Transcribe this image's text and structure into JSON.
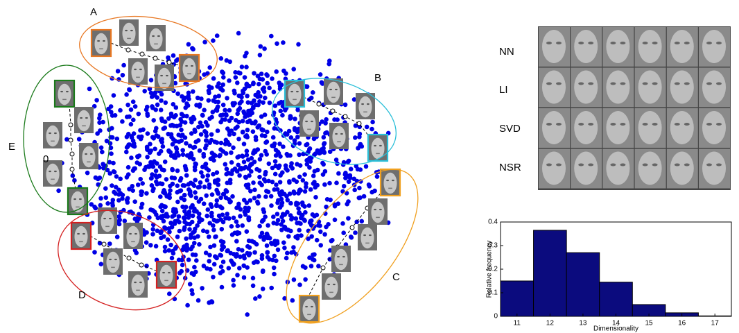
{
  "figure": {
    "cluster_labels": [
      "A",
      "B",
      "C",
      "D",
      "E"
    ],
    "stray_label": "0",
    "rows": [
      "NN",
      "LI",
      "SVD",
      "NSR"
    ]
  },
  "chart_data": {
    "type": "histogram",
    "xlabel": "Dimensionality",
    "ylabel": "Relative frequency",
    "bins": [
      10.5,
      11.5,
      12.5,
      13.5,
      14.5,
      15.5,
      16.5,
      17.5
    ],
    "values": [
      0.15,
      0.365,
      0.27,
      0.145,
      0.05,
      0.015,
      0.002
    ],
    "color": "#0b0b7e",
    "xlim": [
      10.5,
      17.5
    ],
    "xticks": [
      11,
      12,
      13,
      14,
      15,
      16,
      17
    ],
    "ylim": [
      0,
      0.4
    ],
    "yticks": [
      0,
      0.1,
      0.2,
      0.3,
      0.4
    ]
  }
}
